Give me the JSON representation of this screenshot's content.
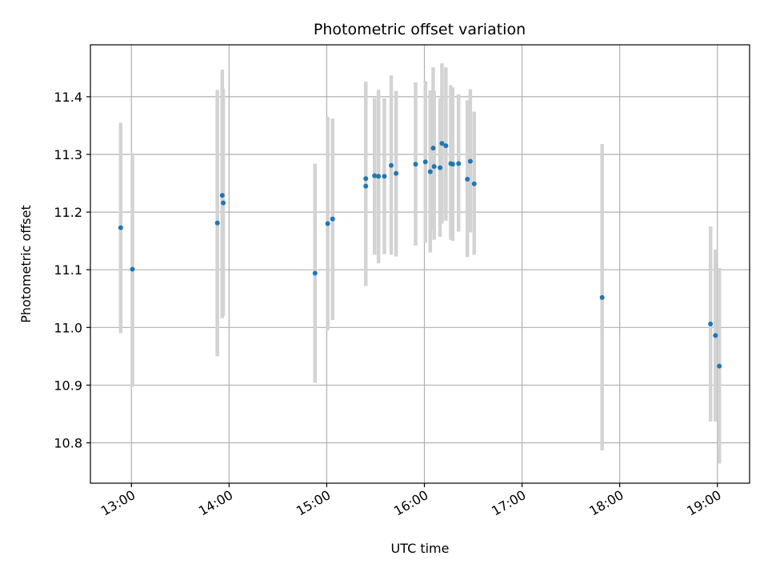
{
  "chart_data": {
    "type": "scatter",
    "title": "Photometric offset variation",
    "xlabel": "UTC time",
    "ylabel": "Photometric offset",
    "grid": true,
    "xlim_hours": [
      12.58,
      19.33
    ],
    "ylim": [
      10.73,
      11.49
    ],
    "xticks": [
      {
        "hour": 13,
        "label": "13:00"
      },
      {
        "hour": 14,
        "label": "14:00"
      },
      {
        "hour": 15,
        "label": "15:00"
      },
      {
        "hour": 16,
        "label": "16:00"
      },
      {
        "hour": 17,
        "label": "17:00"
      },
      {
        "hour": 18,
        "label": "18:00"
      },
      {
        "hour": 19,
        "label": "19:00"
      }
    ],
    "yticks": [
      {
        "value": 10.8,
        "label": "10.8"
      },
      {
        "value": 10.9,
        "label": "10.9"
      },
      {
        "value": 11.0,
        "label": "11.0"
      },
      {
        "value": 11.1,
        "label": "11.1"
      },
      {
        "value": 11.2,
        "label": "11.2"
      },
      {
        "value": 11.3,
        "label": "11.3"
      },
      {
        "value": 11.4,
        "label": "11.4"
      }
    ],
    "point_color": "#1f77b4",
    "errorbar_color": "#d3d3d3",
    "points": [
      {
        "t": 12.89,
        "y": 11.173,
        "lo": 10.99,
        "hi": 11.355
      },
      {
        "t": 13.01,
        "y": 11.101,
        "lo": 10.897,
        "hi": 11.302
      },
      {
        "t": 13.88,
        "y": 11.181,
        "lo": 10.95,
        "hi": 11.412
      },
      {
        "t": 13.93,
        "y": 11.229,
        "lo": 11.016,
        "hi": 11.447
      },
      {
        "t": 13.94,
        "y": 11.216,
        "lo": 11.02,
        "hi": 11.414
      },
      {
        "t": 14.88,
        "y": 11.094,
        "lo": 10.904,
        "hi": 11.284
      },
      {
        "t": 15.01,
        "y": 11.18,
        "lo": 10.995,
        "hi": 11.365
      },
      {
        "t": 15.06,
        "y": 11.188,
        "lo": 11.013,
        "hi": 11.362
      },
      {
        "t": 15.4,
        "y": 11.258,
        "lo": 11.072,
        "hi": 11.426
      },
      {
        "t": 15.4,
        "y": 11.245,
        "lo": 11.09,
        "hi": 11.41
      },
      {
        "t": 15.49,
        "y": 11.263,
        "lo": 11.126,
        "hi": 11.398
      },
      {
        "t": 15.53,
        "y": 11.262,
        "lo": 11.111,
        "hi": 11.412
      },
      {
        "t": 15.59,
        "y": 11.262,
        "lo": 11.127,
        "hi": 11.397
      },
      {
        "t": 15.66,
        "y": 11.281,
        "lo": 11.126,
        "hi": 11.437
      },
      {
        "t": 15.71,
        "y": 11.267,
        "lo": 11.123,
        "hi": 11.41
      },
      {
        "t": 15.91,
        "y": 11.283,
        "lo": 11.142,
        "hi": 11.425
      },
      {
        "t": 16.01,
        "y": 11.287,
        "lo": 11.147,
        "hi": 11.427
      },
      {
        "t": 16.06,
        "y": 11.27,
        "lo": 11.13,
        "hi": 11.411
      },
      {
        "t": 16.09,
        "y": 11.311,
        "lo": 11.17,
        "hi": 11.451
      },
      {
        "t": 16.1,
        "y": 11.279,
        "lo": 11.152,
        "hi": 11.41
      },
      {
        "t": 16.16,
        "y": 11.277,
        "lo": 11.157,
        "hi": 11.397
      },
      {
        "t": 16.18,
        "y": 11.319,
        "lo": 11.18,
        "hi": 11.458
      },
      {
        "t": 16.22,
        "y": 11.315,
        "lo": 11.185,
        "hi": 11.451
      },
      {
        "t": 16.27,
        "y": 11.284,
        "lo": 11.152,
        "hi": 11.42
      },
      {
        "t": 16.29,
        "y": 11.283,
        "lo": 11.15,
        "hi": 11.416
      },
      {
        "t": 16.35,
        "y": 11.284,
        "lo": 11.166,
        "hi": 11.404
      },
      {
        "t": 16.44,
        "y": 11.257,
        "lo": 11.122,
        "hi": 11.394
      },
      {
        "t": 16.47,
        "y": 11.288,
        "lo": 11.165,
        "hi": 11.413
      },
      {
        "t": 16.51,
        "y": 11.249,
        "lo": 11.126,
        "hi": 11.374
      },
      {
        "t": 17.82,
        "y": 11.052,
        "lo": 10.787,
        "hi": 11.318
      },
      {
        "t": 18.93,
        "y": 11.006,
        "lo": 10.837,
        "hi": 11.175
      },
      {
        "t": 18.98,
        "y": 10.986,
        "lo": 10.837,
        "hi": 11.135
      },
      {
        "t": 19.02,
        "y": 10.933,
        "lo": 10.764,
        "hi": 11.103
      }
    ]
  }
}
